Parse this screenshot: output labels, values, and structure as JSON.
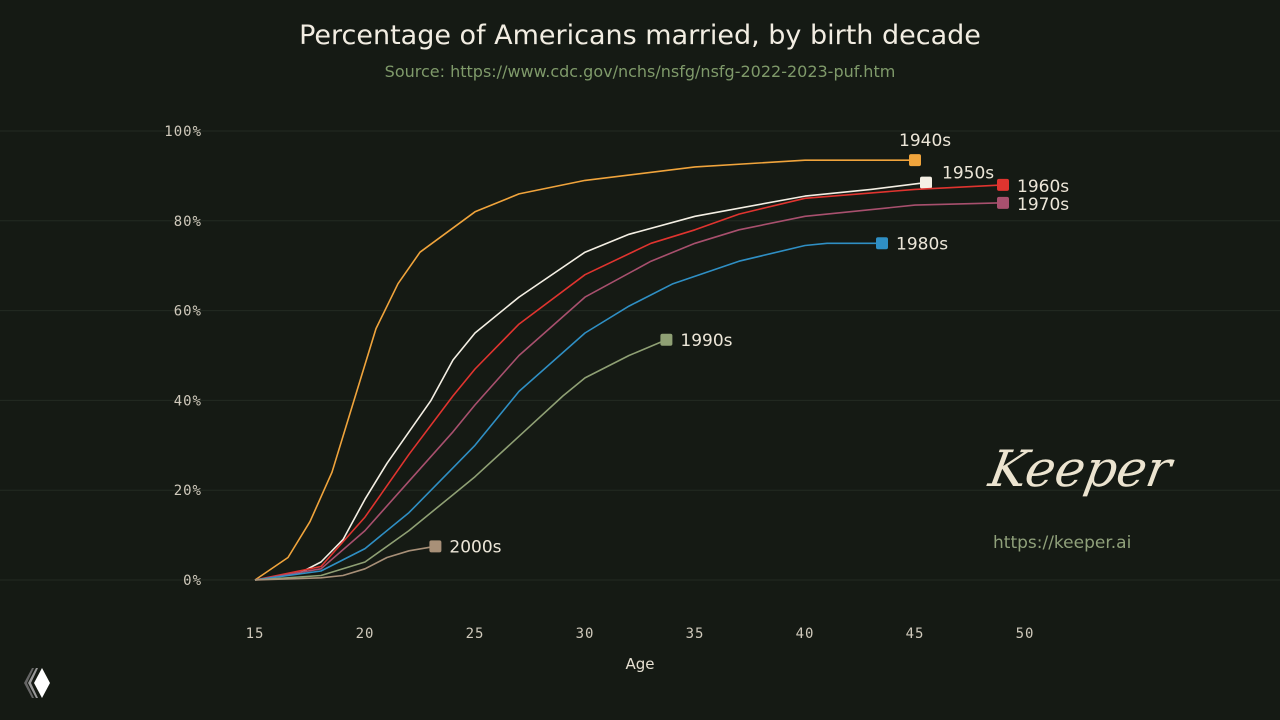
{
  "chart_data": {
    "type": "line",
    "title": "Percentage of Americans married, by birth decade",
    "subtitle": "Source: https://www.cdc.gov/nchs/nsfg/nsfg-2022-2023-puf.htm",
    "xlabel": "Age",
    "ylabel": "",
    "xlim": [
      15,
      50
    ],
    "ylim": [
      0,
      100
    ],
    "xticks": [
      "15",
      "20",
      "25",
      "30",
      "35",
      "40",
      "45",
      "50"
    ],
    "yticks": [
      "0%",
      "20%",
      "40%",
      "60%",
      "80%",
      "100%"
    ],
    "grid": true,
    "series": [
      {
        "name": "1940s",
        "color": "#f0a43c",
        "x": [
          15,
          16.5,
          17.5,
          18.5,
          19.5,
          20.5,
          21.5,
          22.5,
          25,
          27,
          30,
          35,
          40,
          45
        ],
        "y": [
          0,
          5,
          13,
          24,
          40,
          56,
          66,
          73,
          82,
          86,
          89,
          92,
          93.5,
          93.5
        ]
      },
      {
        "name": "1950s",
        "color": "#f4efe4",
        "x": [
          15,
          17,
          18,
          19,
          20,
          21,
          22,
          23,
          24,
          25,
          27,
          30,
          32,
          35,
          40,
          43,
          45.5
        ],
        "y": [
          0,
          1.5,
          4,
          9,
          18,
          26,
          33,
          40,
          49,
          55,
          63,
          73,
          77,
          81,
          85.5,
          87,
          88.5
        ]
      },
      {
        "name": "1960s",
        "color": "#e0342f",
        "x": [
          15,
          18,
          20,
          22,
          24,
          25,
          27,
          30,
          33,
          35,
          37,
          40,
          45,
          49
        ],
        "y": [
          0,
          3,
          14,
          28,
          41,
          47,
          57,
          68,
          75,
          78,
          81.5,
          85,
          87,
          88
        ]
      },
      {
        "name": "1970s",
        "color": "#a8506e",
        "x": [
          15,
          18,
          20,
          22,
          24,
          25,
          27,
          30,
          33,
          35,
          37,
          40,
          45,
          49
        ],
        "y": [
          0,
          2.5,
          11,
          22,
          33,
          39,
          50,
          63,
          71,
          75,
          78,
          81,
          83.5,
          84
        ]
      },
      {
        "name": "1980s",
        "color": "#2f8fc4",
        "x": [
          15,
          18,
          20,
          22,
          24,
          25,
          27,
          30,
          32,
          34,
          37,
          40,
          41,
          43.5
        ],
        "y": [
          0,
          2,
          7,
          15,
          25,
          30,
          42,
          55,
          61,
          66,
          71,
          74.5,
          75,
          75
        ]
      },
      {
        "name": "1990s",
        "color": "#8fa074",
        "x": [
          15,
          18,
          20,
          22,
          24,
          25,
          27,
          29,
          30,
          32,
          33.7
        ],
        "y": [
          0,
          1,
          4,
          11,
          19,
          23,
          32,
          41,
          45,
          50,
          53.5
        ]
      },
      {
        "name": "2000s",
        "color": "#a89078",
        "x": [
          15,
          18,
          19,
          20,
          21,
          22,
          23.2
        ],
        "y": [
          0,
          0.5,
          1,
          2.5,
          5,
          6.5,
          7.5
        ]
      }
    ]
  },
  "branding": {
    "name": "Keeper",
    "url": "https://keeper.ai"
  }
}
